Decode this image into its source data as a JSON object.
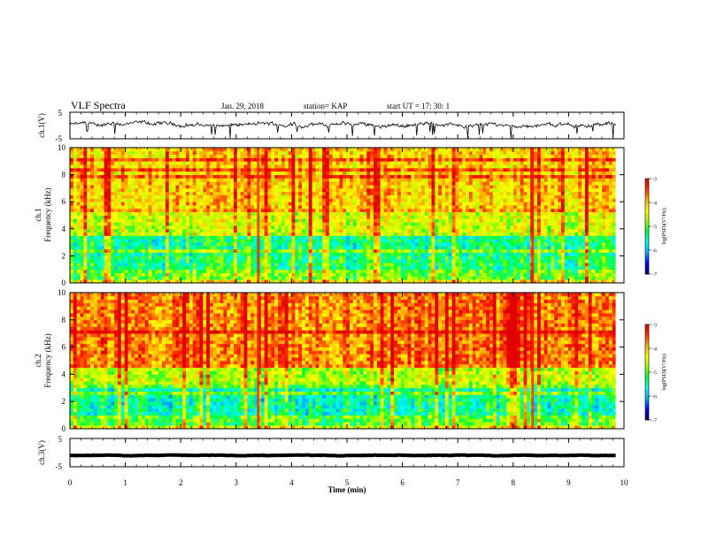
{
  "header": {
    "title": "VLF Spectra",
    "date": "Jan. 29, 2018",
    "station": "station= KAP",
    "start": "start  UT =   17: 30: 1"
  },
  "chart_data": [
    {
      "type": "line",
      "name": "ch1-waveform",
      "ylabel": "ch.1(V)",
      "ylim": [
        -5,
        5
      ],
      "yticks": [
        "5",
        "-5"
      ],
      "x_range_min": [
        0,
        9.85
      ],
      "mean_level": 0.3,
      "noise_amplitude": 1.5
    },
    {
      "type": "heatmap",
      "name": "ch1-spectrogram",
      "ylabel_line1": "ch.1",
      "ylabel_line2": "Frequency (kHz)",
      "ylim": [
        0,
        10
      ],
      "yticks": [
        "0",
        "2",
        "4",
        "6",
        "8",
        "10"
      ],
      "x_range_min": [
        0,
        9.85
      ],
      "colorbar": {
        "label": "log(PSD)(V²/Hz)",
        "range": [
          -7,
          -3
        ],
        "ticks": [
          "-3",
          "-4",
          "-5",
          "-6",
          "-7"
        ]
      },
      "broadband_events_min": [
        3.4,
        8.35
      ],
      "band_levels": [
        {
          "f_min": 0,
          "f_max": 1,
          "log_psd": -4.9
        },
        {
          "f_min": 1,
          "f_max": 2,
          "log_psd": -5.3
        },
        {
          "f_min": 2,
          "f_max": 3.5,
          "log_psd": -5.4
        },
        {
          "f_min": 3.5,
          "f_max": 5.5,
          "log_psd": -4.5
        },
        {
          "f_min": 5.5,
          "f_max": 10,
          "log_psd": -4.1
        }
      ]
    },
    {
      "type": "heatmap",
      "name": "ch2-spectrogram",
      "ylabel_line1": "ch.2",
      "ylabel_line2": "Frequency (kHz)",
      "ylim": [
        0,
        10
      ],
      "yticks": [
        "0",
        "2",
        "4",
        "6",
        "8",
        "10"
      ],
      "x_range_min": [
        0,
        9.85
      ],
      "colorbar": {
        "label": "log(PSD)(V²/Hz)",
        "range": [
          -7,
          -3
        ],
        "ticks": [
          "-3",
          "-4",
          "-5",
          "-6",
          "-7"
        ]
      },
      "broadband_events_min": [
        3.4,
        8.35
      ],
      "band_levels": [
        {
          "f_min": 0,
          "f_max": 1,
          "log_psd": -5.0
        },
        {
          "f_min": 1,
          "f_max": 3.2,
          "log_psd": -5.5
        },
        {
          "f_min": 3.2,
          "f_max": 4.5,
          "log_psd": -4.6
        },
        {
          "f_min": 4.5,
          "f_max": 10,
          "log_psd": -3.7
        }
      ]
    },
    {
      "type": "line",
      "name": "ch3-waveform",
      "ylabel": "ch.3(V)",
      "ylim": [
        -5,
        5
      ],
      "yticks": [
        "5",
        "-5"
      ],
      "x_range_min": [
        0,
        9.85
      ],
      "mean_level": -1.0,
      "noise_amplitude": 0.15
    }
  ],
  "x_axis": {
    "label": "Time (min)",
    "range": [
      0,
      10
    ],
    "ticks": [
      "0",
      "1",
      "2",
      "3",
      "4",
      "5",
      "6",
      "7",
      "8",
      "9",
      "10"
    ]
  },
  "colorscale": [
    "#000066",
    "#0000ff",
    "#00aaff",
    "#00ffee",
    "#00ff40",
    "#a0ff00",
    "#ffff00",
    "#ffb000",
    "#ff3000",
    "#e00000",
    "#ffffff"
  ]
}
